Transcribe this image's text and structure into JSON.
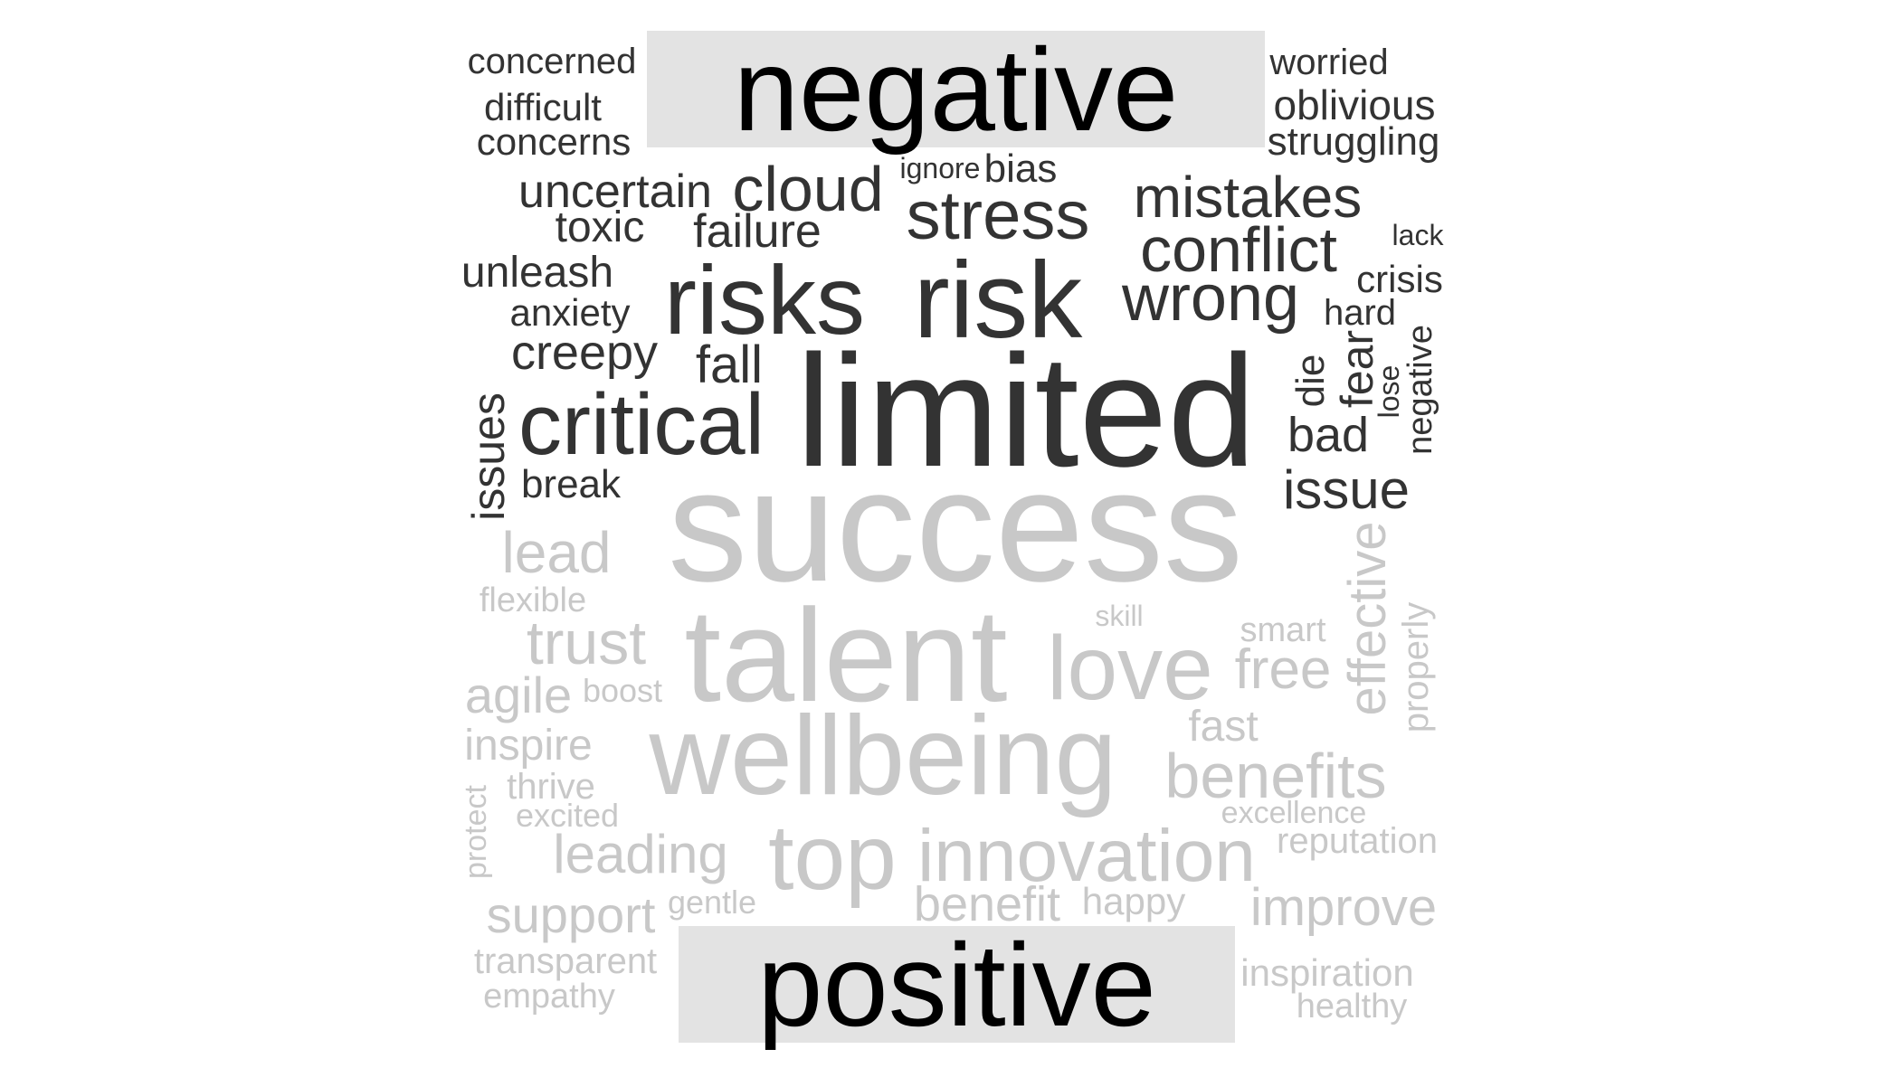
{
  "labels": {
    "negative": "negative",
    "positive": "positive"
  },
  "colors": {
    "negative_words": "#333333",
    "positive_words": "#c8c8c8",
    "label_box": "#e3e3e3",
    "label_text": "#000000"
  },
  "negative_words": [
    "concerned",
    "difficult",
    "concerns",
    "worried",
    "oblivious",
    "struggling",
    "uncertain",
    "cloud",
    "ignore",
    "bias",
    "stress",
    "mistakes",
    "toxic",
    "failure",
    "lack",
    "conflict",
    "unleash",
    "risks",
    "risk",
    "wrong",
    "crisis",
    "anxiety",
    "hard",
    "creepy",
    "negative",
    "fall",
    "die",
    "fear",
    "lose",
    "critical",
    "limited",
    "bad",
    "issues",
    "break",
    "issue"
  ],
  "positive_words": [
    "success",
    "lead",
    "effective",
    "flexible",
    "skill",
    "properly",
    "trust",
    "smart",
    "talent",
    "love",
    "free",
    "agile",
    "boost",
    "inspire",
    "fast",
    "wellbeing",
    "benefits",
    "thrive",
    "protect",
    "excited",
    "excellence",
    "leading",
    "top",
    "innovation",
    "reputation",
    "gentle",
    "benefit",
    "happy",
    "improve",
    "support",
    "transparent",
    "inspiration",
    "empathy",
    "healthy"
  ]
}
